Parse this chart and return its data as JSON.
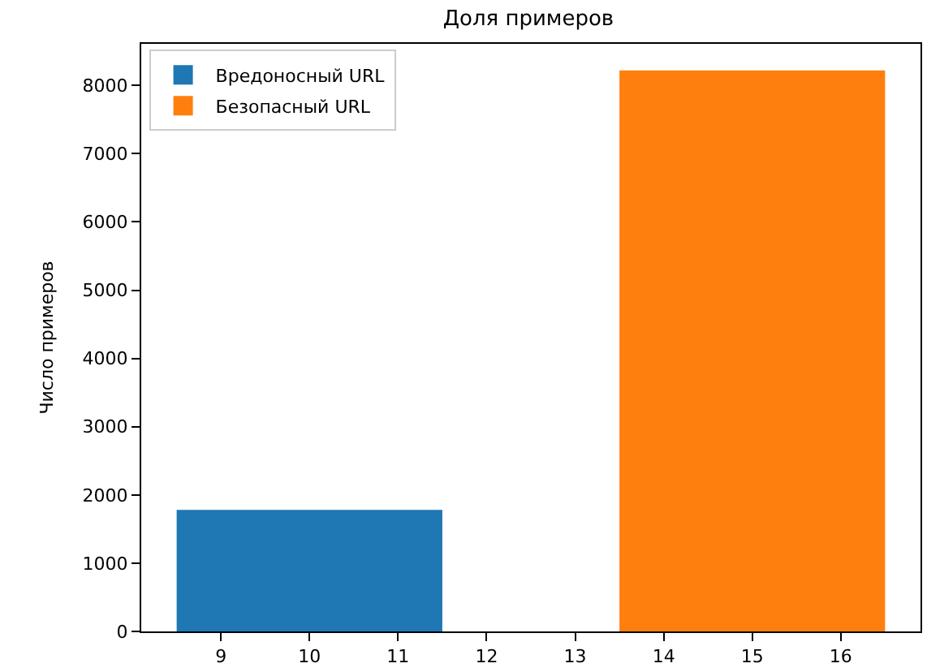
{
  "chart_data": {
    "type": "bar",
    "title": "Доля примеров",
    "ylabel": "Число примеров",
    "series": [
      {
        "name": "Вредоносный URL",
        "color": "#1f77b4",
        "x": [
          10
        ],
        "values": [
          1780
        ]
      },
      {
        "name": "Безопасный URL",
        "color": "#ff7f0e",
        "x": [
          15
        ],
        "values": [
          8220
        ]
      }
    ],
    "xlim": [
      8.1,
      16.9
    ],
    "xticks": [
      9,
      10,
      11,
      12,
      13,
      14,
      15,
      16
    ],
    "ylim": [
      0,
      8610
    ],
    "yticks": [
      0,
      1000,
      2000,
      3000,
      4000,
      5000,
      6000,
      7000,
      8000
    ],
    "legend": "top left"
  }
}
